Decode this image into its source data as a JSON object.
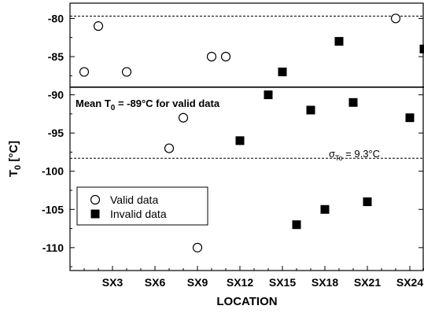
{
  "chart_data": {
    "type": "scatter",
    "xlabel": "LOCATION",
    "ylabel": "T",
    "ylabel_sub": "0",
    "ylabel_unit": " [°C]",
    "ylim": [
      -113,
      -78
    ],
    "y_ticks": [
      -80,
      -85,
      -90,
      -95,
      -100,
      -105,
      -110
    ],
    "xlim": [
      0,
      25
    ],
    "x_ticks": [
      {
        "x": 3,
        "label": "SX3"
      },
      {
        "x": 6,
        "label": "SX6"
      },
      {
        "x": 9,
        "label": "SX9"
      },
      {
        "x": 12,
        "label": "SX12"
      },
      {
        "x": 15,
        "label": "SX15"
      },
      {
        "x": 18,
        "label": "SX18"
      },
      {
        "x": 21,
        "label": "SX21"
      },
      {
        "x": 24,
        "label": "SX24"
      }
    ],
    "series": [
      {
        "name": "Valid data",
        "marker": "open-circle",
        "points": [
          {
            "x": 1,
            "y": -87
          },
          {
            "x": 2,
            "y": -81
          },
          {
            "x": 4,
            "y": -87
          },
          {
            "x": 7,
            "y": -97
          },
          {
            "x": 8,
            "y": -93
          },
          {
            "x": 9,
            "y": -110
          },
          {
            "x": 10,
            "y": -85
          },
          {
            "x": 11,
            "y": -85
          },
          {
            "x": 23,
            "y": -80
          }
        ]
      },
      {
        "name": "Invalid data",
        "marker": "filled-square",
        "points": [
          {
            "x": 12,
            "y": -96
          },
          {
            "x": 14,
            "y": -90
          },
          {
            "x": 15,
            "y": -87
          },
          {
            "x": 16,
            "y": -107
          },
          {
            "x": 17,
            "y": -92
          },
          {
            "x": 18,
            "y": -105
          },
          {
            "x": 19,
            "y": -83
          },
          {
            "x": 20,
            "y": -91
          },
          {
            "x": 21,
            "y": -104
          },
          {
            "x": 24,
            "y": -93
          },
          {
            "x": 25,
            "y": -84
          }
        ]
      }
    ],
    "reference_lines": [
      {
        "y": -89,
        "style": "solid"
      },
      {
        "y": -79.7,
        "style": "dashed"
      },
      {
        "y": -98.3,
        "style": "dashed"
      }
    ],
    "annotations": {
      "mean_prefix": "Mean T",
      "mean_sub": "0",
      "mean_suffix": " = -89°C for valid data",
      "sigma_symbol": "σ",
      "sigma_sub": "To",
      "sigma_suffix": " = 9.3°C"
    },
    "legend_position": "bottom-left",
    "grid": false
  }
}
